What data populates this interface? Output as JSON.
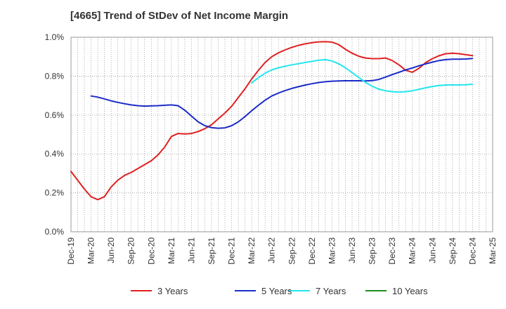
{
  "title": "[4665]  Trend of StDev of Net Income Margin",
  "chart_data": {
    "type": "line",
    "title": "[4665]  Trend of StDev of Net Income Margin",
    "xlabel": "",
    "ylabel": "",
    "x_ticks": [
      "Dec-19",
      "Mar-20",
      "Jun-20",
      "Sep-20",
      "Dec-20",
      "Mar-21",
      "Jun-21",
      "Sep-21",
      "Dec-21",
      "Mar-22",
      "Jun-22",
      "Sep-22",
      "Dec-22",
      "Mar-23",
      "Jun-23",
      "Sep-23",
      "Dec-23",
      "Mar-24",
      "Jun-24",
      "Sep-24",
      "Dec-24",
      "Mar-25"
    ],
    "y_ticks": [
      "0.0%",
      "0.2%",
      "0.4%",
      "0.6%",
      "0.8%",
      "1.0%"
    ],
    "ylim": [
      0,
      1.0
    ],
    "y_unit": "%",
    "grid": true,
    "legend_position": "bottom",
    "series": [
      {
        "name": "3 Years",
        "color": "#e02020",
        "x": [
          "Dec-19",
          "Jan-20",
          "Feb-20",
          "Mar-20",
          "Apr-20",
          "May-20",
          "Jun-20",
          "Jul-20",
          "Aug-20",
          "Sep-20",
          "Oct-20",
          "Nov-20",
          "Dec-20",
          "Jan-21",
          "Feb-21",
          "Mar-21",
          "Apr-21",
          "May-21",
          "Jun-21",
          "Jul-21",
          "Aug-21",
          "Sep-21",
          "Oct-21",
          "Nov-21",
          "Dec-21",
          "Jan-22",
          "Feb-22",
          "Mar-22",
          "Apr-22",
          "May-22",
          "Jun-22",
          "Jul-22",
          "Aug-22",
          "Sep-22",
          "Oct-22",
          "Nov-22",
          "Dec-22",
          "Jan-23",
          "Feb-23",
          "Mar-23",
          "Apr-23",
          "May-23",
          "Jun-23",
          "Jul-23",
          "Aug-23",
          "Sep-23",
          "Oct-23",
          "Nov-23",
          "Dec-23",
          "Jan-24",
          "Feb-24",
          "Mar-24",
          "Apr-24",
          "May-24",
          "Jun-24",
          "Jul-24",
          "Aug-24",
          "Sep-24",
          "Oct-24",
          "Nov-24",
          "Dec-24"
        ],
        "values": [
          0.31,
          0.265,
          0.22,
          0.18,
          0.165,
          0.18,
          0.23,
          0.265,
          0.29,
          0.305,
          0.325,
          0.345,
          0.365,
          0.395,
          0.435,
          0.49,
          0.505,
          0.503,
          0.505,
          0.515,
          0.53,
          0.55,
          0.58,
          0.61,
          0.645,
          0.69,
          0.735,
          0.785,
          0.83,
          0.87,
          0.9,
          0.92,
          0.935,
          0.948,
          0.958,
          0.966,
          0.972,
          0.976,
          0.977,
          0.975,
          0.962,
          0.938,
          0.918,
          0.902,
          0.893,
          0.89,
          0.89,
          0.893,
          0.88,
          0.858,
          0.83,
          0.82,
          0.84,
          0.87,
          0.89,
          0.905,
          0.915,
          0.918,
          0.915,
          0.91,
          0.905
        ]
      },
      {
        "name": "5 Years",
        "color": "#1a2bc8",
        "x": [
          "Mar-20",
          "Apr-20",
          "May-20",
          "Jun-20",
          "Jul-20",
          "Aug-20",
          "Sep-20",
          "Oct-20",
          "Nov-20",
          "Dec-20",
          "Jan-21",
          "Feb-21",
          "Mar-21",
          "Apr-21",
          "May-21",
          "Jun-21",
          "Jul-21",
          "Aug-21",
          "Sep-21",
          "Oct-21",
          "Nov-21",
          "Dec-21",
          "Jan-22",
          "Feb-22",
          "Mar-22",
          "Apr-22",
          "May-22",
          "Jun-22",
          "Jul-22",
          "Aug-22",
          "Sep-22",
          "Oct-22",
          "Nov-22",
          "Dec-22",
          "Jan-23",
          "Feb-23",
          "Mar-23",
          "Apr-23",
          "May-23",
          "Jun-23",
          "Jul-23",
          "Aug-23",
          "Sep-23",
          "Oct-23",
          "Nov-23",
          "Dec-23",
          "Jan-24",
          "Feb-24",
          "Mar-24",
          "Apr-24",
          "May-24",
          "Jun-24",
          "Jul-24",
          "Aug-24",
          "Sep-24",
          "Oct-24",
          "Nov-24",
          "Dec-24"
        ],
        "values": [
          0.698,
          0.692,
          0.683,
          0.673,
          0.665,
          0.658,
          0.652,
          0.648,
          0.646,
          0.647,
          0.648,
          0.65,
          0.652,
          0.648,
          0.625,
          0.595,
          0.565,
          0.545,
          0.535,
          0.532,
          0.534,
          0.545,
          0.565,
          0.592,
          0.622,
          0.65,
          0.676,
          0.698,
          0.713,
          0.726,
          0.737,
          0.746,
          0.754,
          0.761,
          0.767,
          0.771,
          0.774,
          0.775,
          0.776,
          0.776,
          0.776,
          0.775,
          0.777,
          0.783,
          0.795,
          0.808,
          0.82,
          0.832,
          0.842,
          0.853,
          0.863,
          0.872,
          0.88,
          0.885,
          0.887,
          0.887,
          0.888,
          0.891
        ]
      },
      {
        "name": "7 Years",
        "color": "#22e6ee",
        "x": [
          "Mar-22",
          "Apr-22",
          "May-22",
          "Jun-22",
          "Jul-22",
          "Aug-22",
          "Sep-22",
          "Oct-22",
          "Nov-22",
          "Dec-22",
          "Jan-23",
          "Feb-23",
          "Mar-23",
          "Apr-23",
          "May-23",
          "Jun-23",
          "Jul-23",
          "Aug-23",
          "Sep-23",
          "Oct-23",
          "Nov-23",
          "Dec-23",
          "Jan-24",
          "Feb-24",
          "Mar-24",
          "Apr-24",
          "May-24",
          "Jun-24",
          "Jul-24",
          "Aug-24",
          "Sep-24",
          "Oct-24",
          "Nov-24",
          "Dec-24"
        ],
        "values": [
          0.765,
          0.792,
          0.815,
          0.832,
          0.843,
          0.851,
          0.858,
          0.864,
          0.87,
          0.876,
          0.882,
          0.885,
          0.878,
          0.863,
          0.843,
          0.818,
          0.793,
          0.768,
          0.748,
          0.733,
          0.725,
          0.72,
          0.718,
          0.72,
          0.725,
          0.732,
          0.74,
          0.747,
          0.752,
          0.754,
          0.755,
          0.755,
          0.756,
          0.758
        ]
      },
      {
        "name": "10 Years",
        "color": "#1e8a1e",
        "x": [],
        "values": []
      }
    ]
  }
}
